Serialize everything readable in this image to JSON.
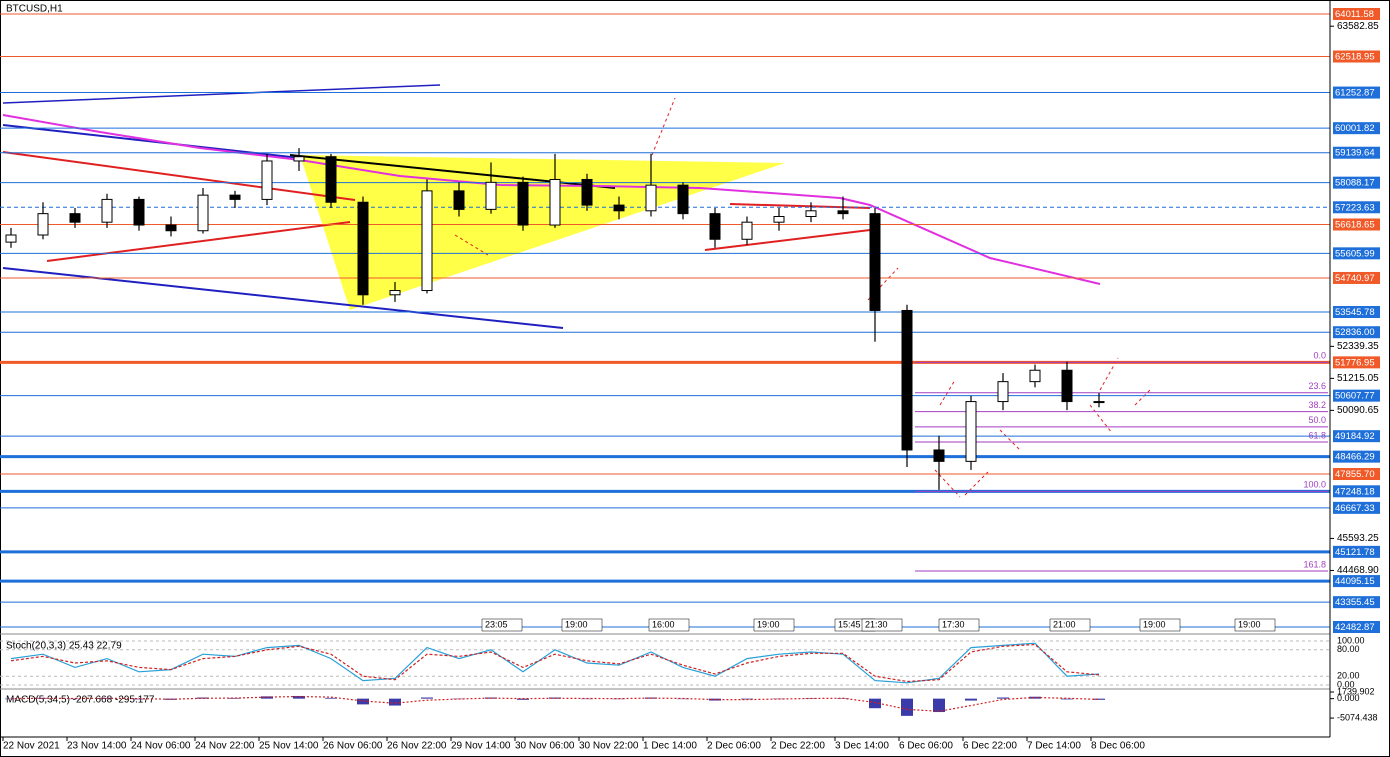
{
  "chart_data": {
    "type": "candlestick",
    "title": "BTCUSD,H1",
    "ylim": [
      42482.87,
      64011.58
    ],
    "yticks": [
      63582.85,
      52339.35,
      51215.05,
      50090.65,
      45593.25,
      {
        "value": 44468.9,
        "label": "44468.90"
      }
    ],
    "levels": [
      {
        "price": 64011.58,
        "color": "#f05a28"
      },
      {
        "price": 62518.95,
        "color": "#f05a28"
      },
      {
        "price": 61252.87,
        "color": "#1e6fd9"
      },
      {
        "price": 60001.82,
        "color": "#1e6fd9"
      },
      {
        "price": 59139.64,
        "color": "#1e6fd9"
      },
      {
        "price": 58088.17,
        "color": "#1e6fd9"
      },
      {
        "price": 57223.63,
        "color": "#1e6fd9",
        "dash": true
      },
      {
        "price": 56618.65,
        "color": "#f05a28"
      },
      {
        "price": 55605.99,
        "color": "#1e6fd9"
      },
      {
        "price": 54740.97,
        "color": "#f05a28"
      },
      {
        "price": 53545.78,
        "color": "#1e6fd9"
      },
      {
        "price": 52836,
        "label": "52836.00",
        "color": "#1e6fd9"
      },
      {
        "price": 51776.95,
        "color": "#f05a28",
        "thick": true
      },
      {
        "price": 50607.77,
        "color": "#1e6fd9"
      },
      {
        "price": 49184.92,
        "color": "#1e6fd9"
      },
      {
        "price": 48466.29,
        "color": "#1e6fd9",
        "thick": true
      },
      {
        "price": 47855.7,
        "label": "47855.70",
        "color": "#f05a28"
      },
      {
        "price": 47248.18,
        "color": "#1e6fd9",
        "thick": true
      },
      {
        "price": 46667.33,
        "color": "#1e6fd9"
      },
      {
        "price": 45121.78,
        "color": "#1e6fd9",
        "thick": true
      },
      {
        "price": 44095.15,
        "color": "#1e6fd9",
        "thick": true
      },
      {
        "price": 43355.45,
        "color": "#1e6fd9"
      },
      {
        "price": 42482.87,
        "color": "#1e6fd9"
      }
    ],
    "fib": {
      "high": 51776.95,
      "low": 47248.18,
      "color": "#a23ec2",
      "levels": [
        {
          "value": 0,
          "label": "0.0"
        },
        23.6,
        38.2,
        {
          "value": 50,
          "label": "50.0"
        },
        61.8,
        {
          "value": 100,
          "label": "100.0"
        },
        161.8
      ]
    },
    "x_labels": [
      "22 Nov 2021",
      "23 Nov 14:00",
      "24 Nov 06:00",
      "24 Nov 22:00",
      "25 Nov 14:00",
      "26 Nov 06:00",
      "26 Nov 22:00",
      "29 Nov 14:00",
      "30 Nov 06:00",
      "30 Nov 22:00",
      "1 Dec 14:00",
      "2 Dec 06:00",
      "2 Dec 22:00",
      "3 Dec 14:00",
      "6 Dec 06:00",
      "6 Dec 22:00",
      "7 Dec 14:00",
      "8 Dec 06:00"
    ],
    "session_labels": [
      "23:05",
      "19:00",
      "16:00",
      "19:00",
      "15:45",
      "21:30",
      "17:30",
      "21:00",
      "19:00",
      "19:00"
    ],
    "open": [
      56000,
      56250,
      57000,
      56700,
      57500,
      56600,
      56400,
      57650,
      57500,
      58850,
      59000,
      57400,
      54150,
      54300,
      57800,
      57150,
      58100,
      56600,
      58200,
      57300,
      57100,
      58000,
      57000,
      56100,
      56700,
      56900,
      57100,
      57000,
      53600,
      48700,
      48300,
      50400,
      51100,
      51500,
      50400
    ],
    "high": [
      56500,
      57400,
      57200,
      57700,
      57600,
      56900,
      57900,
      57800,
      59100,
      59300,
      59100,
      57600,
      54600,
      58200,
      58100,
      58800,
      58300,
      59100,
      58400,
      57600,
      59100,
      58100,
      57200,
      56900,
      57200,
      57400,
      57600,
      57200,
      53800,
      49200,
      50600,
      51400,
      51700,
      51800,
      50700
    ],
    "low": [
      55800,
      56100,
      56500,
      56500,
      56400,
      56200,
      56300,
      57200,
      57300,
      58500,
      57200,
      53800,
      53900,
      54200,
      56900,
      57000,
      56400,
      56500,
      57100,
      56800,
      56900,
      56800,
      55800,
      55900,
      56400,
      56700,
      56800,
      52500,
      48100,
      47300,
      48000,
      50100,
      50900,
      50100,
      50200
    ],
    "close": [
      56250,
      57000,
      56700,
      57500,
      56600,
      56400,
      57650,
      57500,
      58850,
      59000,
      57400,
      54150,
      54300,
      57800,
      57150,
      58100,
      56600,
      58200,
      57300,
      57100,
      58000,
      57000,
      56100,
      56700,
      56900,
      57100,
      57000,
      53600,
      48700,
      48300,
      50400,
      51100,
      51500,
      50400,
      50400
    ],
    "stoch": {
      "title": "Stoch(20,3,3) 25.43 22.79",
      "ylim": [
        0,
        100
      ],
      "yticks": [
        {
          "value": 100,
          "label": "100.00"
        },
        {
          "value": 80,
          "label": "80.00"
        },
        {
          "value": 20,
          "label": "20.00"
        },
        {
          "value": 0,
          "label": "0.00"
        }
      ],
      "k": [
        60,
        70,
        40,
        60,
        30,
        35,
        70,
        65,
        85,
        90,
        60,
        10,
        15,
        85,
        60,
        80,
        30,
        80,
        50,
        45,
        75,
        40,
        20,
        60,
        70,
        75,
        70,
        10,
        5,
        15,
        85,
        90,
        95,
        20,
        25
      ],
      "d": [
        55,
        65,
        50,
        55,
        40,
        35,
        60,
        65,
        80,
        88,
        70,
        20,
        12,
        70,
        65,
        75,
        40,
        70,
        55,
        48,
        70,
        45,
        25,
        50,
        65,
        72,
        72,
        20,
        8,
        12,
        75,
        88,
        92,
        30,
        23
      ]
    },
    "macd": {
      "title": "MACD(5,34,5) -207.668 -295.177",
      "ylim": [
        -9500,
        2000
      ],
      "yticks": [
        1739.902,
        {
          "value": 0,
          "label": "0.000"
        },
        -5074.438
      ],
      "hist": [
        0,
        200,
        -100,
        200,
        -200,
        -300,
        300,
        200,
        600,
        700,
        200,
        -1500,
        -1800,
        300,
        0,
        300,
        -300,
        300,
        0,
        -100,
        300,
        -100,
        -500,
        -200,
        0,
        100,
        100,
        -2500,
        -4500,
        -3500,
        -500,
        300,
        500,
        -200,
        -300
      ],
      "signal": [
        0,
        100,
        50,
        100,
        0,
        -150,
        100,
        150,
        400,
        550,
        400,
        -600,
        -1200,
        -400,
        -100,
        150,
        0,
        100,
        50,
        0,
        150,
        50,
        -250,
        -250,
        -100,
        50,
        100,
        -1000,
        -2800,
        -3300,
        -1800,
        -200,
        300,
        100,
        -200
      ]
    }
  }
}
